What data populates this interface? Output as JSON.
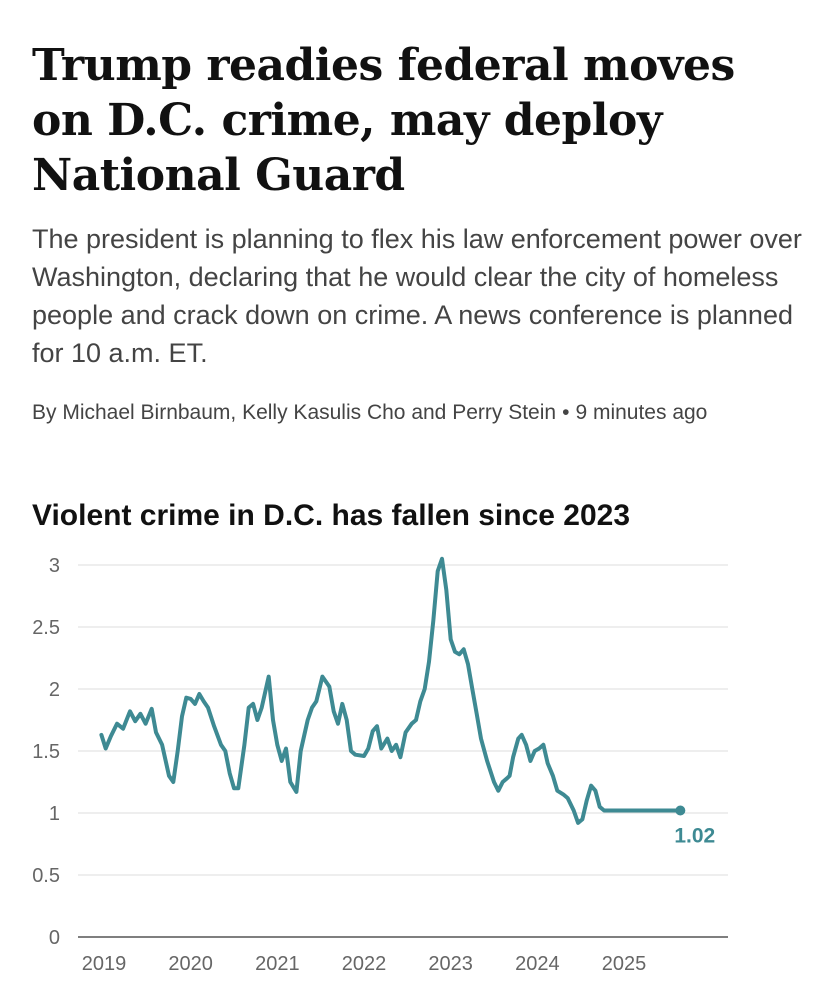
{
  "article": {
    "headline": "Trump readies federal moves on D.C. crime, may deploy National Guard",
    "dek": "The president is planning to flex his law enforcement power over Washington, declaring that he would clear the city of homeless people and crack down on crime. A news conference is planned for 10 a.m. ET.",
    "byline": "By Michael Birnbaum, Kelly Kasulis Cho and Perry Stein",
    "separator": "•",
    "timestamp": "9 minutes ago"
  },
  "colors": {
    "line": "#3e8a93",
    "grid": "#dddddd",
    "axis": "#555555",
    "label": "#3e8a93"
  },
  "chart_data": {
    "type": "line",
    "title": "Violent crime in D.C. has fallen since 2023",
    "xlabel": "",
    "ylabel": "",
    "ylim": [
      0,
      3
    ],
    "xlim": [
      2018.7,
      2026.2
    ],
    "grid": true,
    "yticks": [
      0,
      0.5,
      1,
      1.5,
      2,
      2.5,
      3
    ],
    "ytick_labels": [
      "0",
      "0.5",
      "1",
      "1.5",
      "2",
      "2.5",
      "3"
    ],
    "xticks": [
      2019,
      2020,
      2021,
      2022,
      2023,
      2024,
      2025
    ],
    "xtick_labels": [
      "2019",
      "2020",
      "2021",
      "2022",
      "2023",
      "2024",
      "2025"
    ],
    "end_label": "1.02",
    "series": [
      {
        "name": "Violent crime",
        "x": [
          2018.97,
          2019.02,
          2019.08,
          2019.15,
          2019.22,
          2019.3,
          2019.36,
          2019.42,
          2019.48,
          2019.55,
          2019.6,
          2019.67,
          2019.75,
          2019.8,
          2019.85,
          2019.9,
          2019.95,
          2020.0,
          2020.05,
          2020.1,
          2020.15,
          2020.2,
          2020.27,
          2020.35,
          2020.4,
          2020.45,
          2020.5,
          2020.55,
          2020.62,
          2020.67,
          2020.72,
          2020.77,
          2020.82,
          2020.9,
          2020.95,
          2021.0,
          2021.05,
          2021.1,
          2021.15,
          2021.22,
          2021.27,
          2021.35,
          2021.4,
          2021.45,
          2021.52,
          2021.6,
          2021.65,
          2021.7,
          2021.75,
          2021.8,
          2021.85,
          2021.9,
          2022.0,
          2022.05,
          2022.1,
          2022.15,
          2022.2,
          2022.27,
          2022.32,
          2022.37,
          2022.42,
          2022.48,
          2022.55,
          2022.6,
          2022.65,
          2022.7,
          2022.75,
          2022.8,
          2022.85,
          2022.9,
          2022.95,
          2023.0,
          2023.05,
          2023.1,
          2023.15,
          2023.2,
          2023.25,
          2023.3,
          2023.35,
          2023.42,
          2023.5,
          2023.55,
          2023.6,
          2023.65,
          2023.68,
          2023.72,
          2023.78,
          2023.82,
          2023.87,
          2023.92,
          2023.97,
          2024.02,
          2024.07,
          2024.12,
          2024.18,
          2024.23,
          2024.3,
          2024.35,
          2024.42,
          2024.47,
          2024.52,
          2024.57,
          2024.62,
          2024.67,
          2024.72,
          2024.77,
          2024.82,
          2024.87,
          2024.92,
          2024.97,
          2025.02,
          2025.07,
          2025.12,
          2025.18,
          2025.23,
          2025.27,
          2025.32,
          2025.37,
          2025.42,
          2025.47,
          2025.52,
          2025.57,
          2025.6,
          2025.65
        ],
        "values": [
          1.63,
          1.52,
          1.62,
          1.72,
          1.68,
          1.82,
          1.74,
          1.8,
          1.72,
          1.84,
          1.65,
          1.55,
          1.3,
          1.25,
          1.5,
          1.78,
          1.93,
          1.92,
          1.88,
          1.96,
          1.9,
          1.85,
          1.7,
          1.55,
          1.5,
          1.32,
          1.2,
          1.2,
          1.55,
          1.85,
          1.88,
          1.75,
          1.85,
          2.1,
          1.75,
          1.55,
          1.42,
          1.52,
          1.25,
          1.17,
          1.5,
          1.75,
          1.85,
          1.9,
          2.1,
          2.02,
          1.82,
          1.72,
          1.88,
          1.75,
          1.5,
          1.47,
          1.46,
          1.52,
          1.66,
          1.7,
          1.52,
          1.6,
          1.5,
          1.55,
          1.45,
          1.65,
          1.72,
          1.75,
          1.9,
          2.0,
          2.22,
          2.55,
          2.95,
          3.05,
          2.8,
          2.4,
          2.3,
          2.28,
          2.32,
          2.2,
          2.0,
          1.8,
          1.6,
          1.42,
          1.25,
          1.18,
          1.25,
          1.28,
          1.3,
          1.45,
          1.6,
          1.63,
          1.55,
          1.42,
          1.5,
          1.52,
          1.55,
          1.4,
          1.3,
          1.18,
          1.15,
          1.12,
          1.02,
          0.92,
          0.95,
          1.1,
          1.22,
          1.18,
          1.05,
          1.02,
          1.02,
          1.02,
          1.02,
          1.02,
          1.02,
          1.02,
          1.02,
          1.02,
          1.02,
          1.02,
          1.02,
          1.02,
          1.02,
          1.02,
          1.02,
          1.02,
          1.02,
          1.02
        ]
      }
    ]
  }
}
